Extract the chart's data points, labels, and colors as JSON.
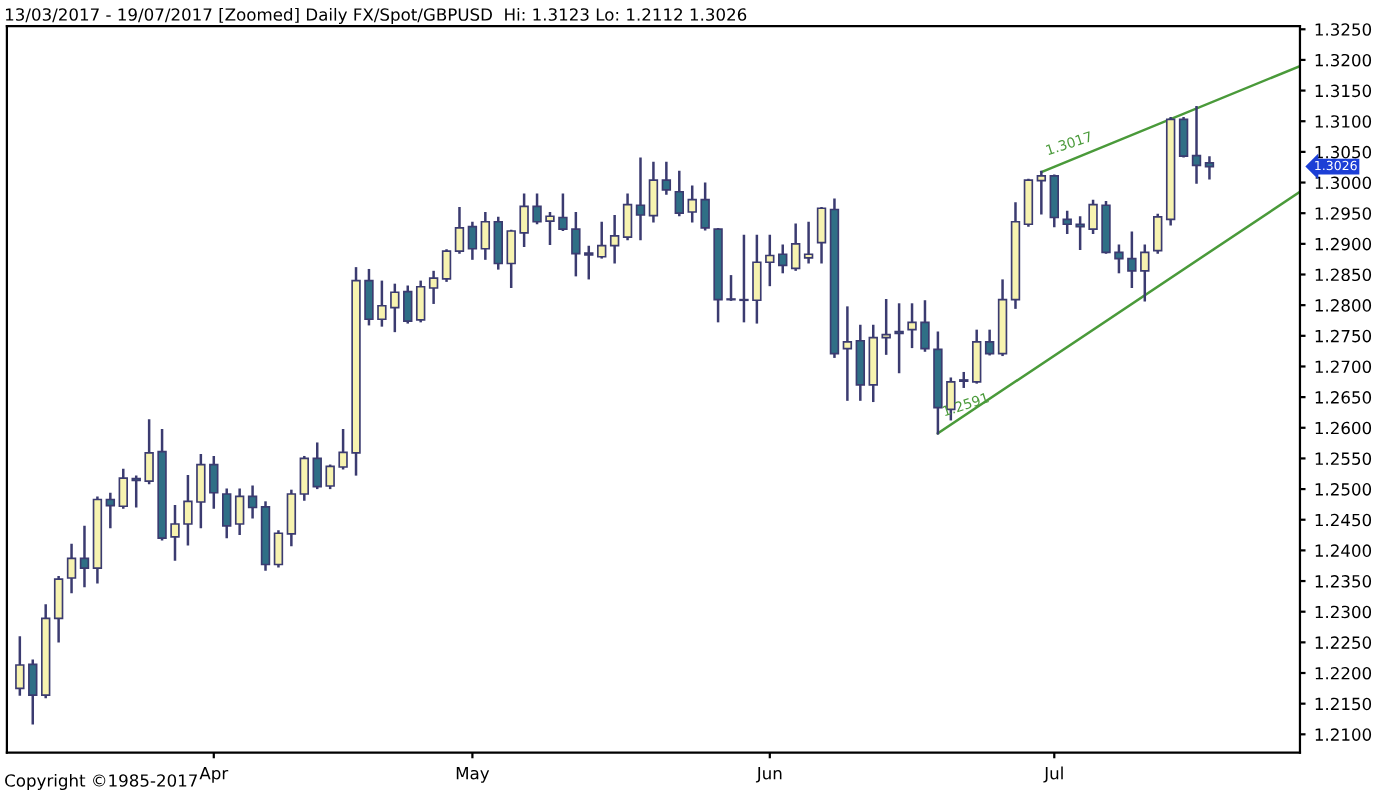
{
  "chart_data": {
    "type": "candlestick",
    "title": "13/03/2017 - 19/07/2017 [Zoomed] Daily FX/Spot/GBPUSD  Hi: 1.3123 Lo: 1.2112 1.3026",
    "annotations": [
      "Copyright ©1985-2017",
      "1.3026"
    ],
    "categories": [
      null,
      null,
      null,
      null,
      null,
      null,
      null,
      null,
      null,
      null,
      null,
      null,
      null,
      null,
      null,
      "Apr",
      null,
      null,
      null,
      null,
      null,
      null,
      null,
      null,
      null,
      null,
      null,
      null,
      null,
      null,
      null,
      null,
      null,
      null,
      null,
      "May",
      null,
      null,
      null,
      null,
      null,
      null,
      null,
      null,
      null,
      null,
      null,
      null,
      null,
      null,
      null,
      null,
      null,
      null,
      null,
      null,
      null,
      null,
      "Jun",
      null,
      null,
      null,
      null,
      null,
      null,
      null,
      null,
      null,
      null,
      null,
      null,
      null,
      null,
      null,
      null,
      null,
      null,
      null,
      null,
      null,
      "Jul",
      null,
      null,
      null,
      null,
      null,
      null,
      null,
      null,
      null,
      null,
      null,
      null,
      null,
      null,
      null,
      null,
      null,
      null,
      null
    ],
    "ohlc": [
      [
        1.2175,
        1.2258,
        1.2165,
        1.2213
      ],
      [
        1.2214,
        1.222,
        1.2118,
        1.2164
      ],
      [
        1.2164,
        1.231,
        1.2161,
        1.2289
      ],
      [
        1.2289,
        1.2356,
        1.2252,
        1.2353
      ],
      [
        1.2355,
        1.2409,
        1.2332,
        1.2387
      ],
      [
        1.2387,
        1.2438,
        1.2342,
        1.2371
      ],
      [
        1.2371,
        1.2486,
        1.2348,
        1.2483
      ],
      [
        1.2483,
        1.2492,
        1.2438,
        1.2473
      ],
      [
        1.2472,
        1.2531,
        1.247,
        1.2518
      ],
      [
        1.2517,
        1.252,
        1.2472,
        1.2514
      ],
      [
        1.2513,
        1.2612,
        1.251,
        1.2559
      ],
      [
        1.2561,
        1.2596,
        1.2418,
        1.242
      ],
      [
        1.2422,
        1.2472,
        1.2385,
        1.2443
      ],
      [
        1.2443,
        1.2521,
        1.241,
        1.248
      ],
      [
        1.2479,
        1.2555,
        1.2438,
        1.254
      ],
      [
        1.254,
        1.2552,
        1.247,
        1.2494
      ],
      [
        1.2492,
        1.2499,
        1.2422,
        1.244
      ],
      [
        1.2443,
        1.2499,
        1.2427,
        1.2488
      ],
      [
        1.2488,
        1.2504,
        1.2454,
        1.247
      ],
      [
        1.2471,
        1.2478,
        1.2369,
        1.2377
      ],
      [
        1.2377,
        1.2431,
        1.2374,
        1.2428
      ],
      [
        1.2427,
        1.2497,
        1.2409,
        1.2492
      ],
      [
        1.2492,
        1.2552,
        1.2483,
        1.255
      ],
      [
        1.255,
        1.2574,
        1.2502,
        1.2504
      ],
      [
        1.2505,
        1.2538,
        1.2502,
        1.2537
      ],
      [
        1.2536,
        1.2596,
        1.2534,
        1.256
      ],
      [
        1.2559,
        1.286,
        1.2524,
        1.284
      ],
      [
        1.284,
        1.2857,
        1.2769,
        1.2777
      ],
      [
        1.2777,
        1.2838,
        1.2767,
        1.2799
      ],
      [
        1.2796,
        1.2833,
        1.2758,
        1.2821
      ],
      [
        1.2822,
        1.283,
        1.2772,
        1.2774
      ],
      [
        1.2776,
        1.2838,
        1.2774,
        1.283
      ],
      [
        1.2828,
        1.2854,
        1.2804,
        1.2844
      ],
      [
        1.2843,
        1.2889,
        1.284,
        1.2888
      ],
      [
        1.2888,
        1.2958,
        1.2886,
        1.2926
      ],
      [
        1.2928,
        1.2934,
        1.2876,
        1.2892
      ],
      [
        1.2892,
        1.295,
        1.2876,
        1.2936
      ],
      [
        1.2936,
        1.2942,
        1.286,
        1.2868
      ],
      [
        1.2868,
        1.2921,
        1.283,
        1.2921
      ],
      [
        1.2918,
        1.298,
        1.2897,
        1.2961
      ],
      [
        1.2961,
        1.298,
        1.2934,
        1.2936
      ],
      [
        1.2937,
        1.295,
        1.29,
        1.2945
      ],
      [
        1.2943,
        1.298,
        1.2923,
        1.2924
      ],
      [
        1.2924,
        1.295,
        1.2849,
        1.2884
      ],
      [
        1.2885,
        1.2895,
        1.2844,
        1.2882
      ],
      [
        1.2879,
        1.2934,
        1.2878,
        1.2897
      ],
      [
        1.2897,
        1.2945,
        1.287,
        1.2913
      ],
      [
        1.2911,
        1.298,
        1.2908,
        1.2964
      ],
      [
        1.2963,
        1.3039,
        1.2908,
        1.2947
      ],
      [
        1.2946,
        1.3032,
        1.2937,
        1.3004
      ],
      [
        1.3004,
        1.3032,
        1.2982,
        1.2988
      ],
      [
        1.2985,
        1.3017,
        1.2947,
        1.295
      ],
      [
        1.2952,
        1.2993,
        1.2937,
        1.2972
      ],
      [
        1.2972,
        1.2998,
        1.2924,
        1.2926
      ],
      [
        1.2924,
        1.2924,
        1.2774,
        1.2809
      ],
      [
        1.281,
        1.2847,
        1.2809,
        1.2809
      ],
      [
        1.2809,
        1.2913,
        1.2774,
        1.2808
      ],
      [
        1.2808,
        1.2913,
        1.2772,
        1.287
      ],
      [
        1.287,
        1.2913,
        1.2833,
        1.2881
      ],
      [
        1.2883,
        1.2897,
        1.2854,
        1.2865
      ],
      [
        1.286,
        1.2931,
        1.2858,
        1.29
      ],
      [
        1.2877,
        1.2934,
        1.287,
        1.2883
      ],
      [
        1.2902,
        1.2958,
        1.287,
        1.2958
      ],
      [
        1.2956,
        1.2972,
        1.2716,
        1.2721
      ],
      [
        1.2729,
        1.2796,
        1.2646,
        1.274
      ],
      [
        1.2742,
        1.2766,
        1.2646,
        1.267
      ],
      [
        1.267,
        1.2766,
        1.2644,
        1.2747
      ],
      [
        1.2747,
        1.2808,
        1.2721,
        1.2752
      ],
      [
        1.2757,
        1.2801,
        1.2691,
        1.2754
      ],
      [
        1.276,
        1.2801,
        1.2732,
        1.2772
      ],
      [
        1.2772,
        1.2806,
        1.2726,
        1.2729
      ],
      [
        1.2728,
        1.2755,
        1.2591,
        1.2633
      ],
      [
        1.263,
        1.268,
        1.2614,
        1.2675
      ],
      [
        1.2678,
        1.2689,
        1.2667,
        1.2676
      ],
      [
        1.2675,
        1.2758,
        1.2674,
        1.274
      ],
      [
        1.274,
        1.2758,
        1.272,
        1.2721
      ],
      [
        1.2721,
        1.284,
        1.2719,
        1.2809
      ],
      [
        1.2809,
        1.2966,
        1.2796,
        1.2936
      ],
      [
        1.2932,
        1.3004,
        1.293,
        1.3004
      ],
      [
        1.3003,
        1.3017,
        1.295,
        1.3011
      ],
      [
        1.3011,
        1.3011,
        1.2929,
        1.2943
      ],
      [
        1.294,
        1.2952,
        1.2918,
        1.2932
      ],
      [
        1.2932,
        1.2943,
        1.2892,
        1.2928
      ],
      [
        1.2924,
        1.297,
        1.2918,
        1.2964
      ],
      [
        1.2963,
        1.2968,
        1.2886,
        1.2886
      ],
      [
        1.2886,
        1.2897,
        1.2854,
        1.2876
      ],
      [
        1.2876,
        1.2918,
        1.283,
        1.2856
      ],
      [
        1.2856,
        1.2897,
        1.2808,
        1.2886
      ],
      [
        1.2889,
        1.2947,
        1.2886,
        1.2944
      ],
      [
        1.294,
        1.3105,
        1.2932,
        1.3103
      ],
      [
        1.3103,
        1.3105,
        1.3043,
        1.3043
      ],
      [
        1.3044,
        1.3123,
        1.3,
        1.3028
      ],
      [
        1.3032,
        1.3041,
        1.3007,
        1.3026
      ],
      null,
      null,
      null,
      null,
      null,
      null,
      null
    ],
    "series": [
      {
        "type": "line",
        "color": "#4a9a3a",
        "values": [
          null,
          null,
          null,
          null,
          null,
          null,
          null,
          null,
          null,
          null,
          null,
          null,
          null,
          null,
          null,
          null,
          null,
          null,
          null,
          null,
          null,
          null,
          null,
          null,
          null,
          null,
          null,
          null,
          null,
          null,
          null,
          null,
          null,
          null,
          null,
          null,
          null,
          null,
          null,
          null,
          null,
          null,
          null,
          null,
          null,
          null,
          null,
          null,
          null,
          null,
          null,
          null,
          null,
          null,
          null,
          null,
          null,
          null,
          null,
          null,
          null,
          null,
          null,
          null,
          null,
          null,
          null,
          null,
          null,
          null,
          null,
          null,
          null,
          null,
          null,
          null,
          null,
          null,
          null,
          1.3017,
          null,
          null,
          null,
          null,
          null,
          null,
          null,
          null,
          null,
          null,
          null,
          null,
          null,
          null,
          null,
          null,
          null,
          null,
          null,
          1.319
        ],
        "value_labels": [
          null,
          null,
          null,
          null,
          null,
          null,
          null,
          null,
          null,
          null,
          null,
          null,
          null,
          null,
          null,
          null,
          null,
          null,
          null,
          null,
          null,
          null,
          null,
          null,
          null,
          null,
          null,
          null,
          null,
          null,
          null,
          null,
          null,
          null,
          null,
          null,
          null,
          null,
          null,
          null,
          null,
          null,
          null,
          null,
          null,
          null,
          null,
          null,
          null,
          null,
          null,
          null,
          null,
          null,
          null,
          null,
          null,
          null,
          null,
          null,
          null,
          null,
          null,
          null,
          null,
          null,
          null,
          null,
          null,
          null,
          null,
          null,
          null,
          null,
          null,
          null,
          null,
          null,
          null,
          "1.3017",
          null,
          null,
          null,
          null,
          null,
          null,
          null,
          null,
          null,
          null,
          null,
          null,
          null,
          null,
          null,
          null,
          null,
          null,
          null,
          null
        ]
      },
      {
        "type": "line",
        "color": "#4a9a3a",
        "values": [
          null,
          null,
          null,
          null,
          null,
          null,
          null,
          null,
          null,
          null,
          null,
          null,
          null,
          null,
          null,
          null,
          null,
          null,
          null,
          null,
          null,
          null,
          null,
          null,
          null,
          null,
          null,
          null,
          null,
          null,
          null,
          null,
          null,
          null,
          null,
          null,
          null,
          null,
          null,
          null,
          null,
          null,
          null,
          null,
          null,
          null,
          null,
          null,
          null,
          null,
          null,
          null,
          null,
          null,
          null,
          null,
          null,
          null,
          null,
          null,
          null,
          null,
          null,
          null,
          null,
          null,
          null,
          null,
          null,
          null,
          null,
          1.2591,
          null,
          null,
          null,
          null,
          null,
          null,
          null,
          null,
          null,
          null,
          null,
          null,
          null,
          null,
          null,
          null,
          null,
          null,
          null,
          null,
          null,
          null,
          null,
          null,
          null,
          null,
          null,
          1.2985
        ],
        "value_labels": [
          null,
          null,
          null,
          null,
          null,
          null,
          null,
          null,
          null,
          null,
          null,
          null,
          null,
          null,
          null,
          null,
          null,
          null,
          null,
          null,
          null,
          null,
          null,
          null,
          null,
          null,
          null,
          null,
          null,
          null,
          null,
          null,
          null,
          null,
          null,
          null,
          null,
          null,
          null,
          null,
          null,
          null,
          null,
          null,
          null,
          null,
          null,
          null,
          null,
          null,
          null,
          null,
          null,
          null,
          null,
          null,
          null,
          null,
          null,
          null,
          null,
          null,
          null,
          null,
          null,
          null,
          null,
          null,
          null,
          null,
          null,
          "1.2591",
          null,
          null,
          null,
          null,
          null,
          null,
          null,
          null,
          null,
          null,
          null,
          null,
          null,
          null,
          null,
          null,
          null,
          null,
          null,
          null,
          null,
          null,
          null,
          null,
          null,
          null,
          null,
          null
        ]
      }
    ],
    "ylim": [
      1.207,
      1.3255
    ],
    "yticks": [
      {
        "value": 1.21,
        "label": "1.2100"
      },
      {
        "value": 1.215,
        "label": "1.2150"
      },
      {
        "value": 1.22,
        "label": "1.2200"
      },
      {
        "value": 1.225,
        "label": "1.2250"
      },
      {
        "value": 1.23,
        "label": "1.2300"
      },
      {
        "value": 1.235,
        "label": "1.2350"
      },
      {
        "value": 1.24,
        "label": "1.2400"
      },
      {
        "value": 1.245,
        "label": "1.2450"
      },
      {
        "value": 1.25,
        "label": "1.2500"
      },
      {
        "value": 1.255,
        "label": "1.2550"
      },
      {
        "value": 1.26,
        "label": "1.2600"
      },
      {
        "value": 1.265,
        "label": "1.2650"
      },
      {
        "value": 1.27,
        "label": "1.2700"
      },
      {
        "value": 1.275,
        "label": "1.2750"
      },
      {
        "value": 1.28,
        "label": "1.2800"
      },
      {
        "value": 1.285,
        "label": "1.2850"
      },
      {
        "value": 1.29,
        "label": "1.2900"
      },
      {
        "value": 1.295,
        "label": "1.2950"
      },
      {
        "value": 1.3,
        "label": "1.3000"
      },
      {
        "value": 1.305,
        "label": "1.3050"
      },
      {
        "value": 1.31,
        "label": "1.3100"
      },
      {
        "value": 1.315,
        "label": "1.3150"
      },
      {
        "value": 1.32,
        "label": "1.3200"
      },
      {
        "value": 1.325,
        "label": "1.3250"
      }
    ],
    "grid": false,
    "legend": false
  }
}
